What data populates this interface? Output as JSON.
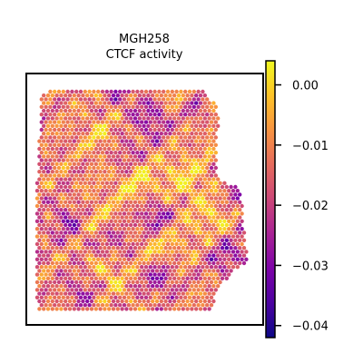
{
  "chart_data": {
    "type": "heatmap",
    "subtype": "spatial-spot-map",
    "title_lines": [
      "MGH258",
      "CTCF activity"
    ],
    "xlabel": "",
    "ylabel": "",
    "colormap": "plasma",
    "colorbar": {
      "vmin": -0.042,
      "vmax": 0.004,
      "ticks": [
        0.0,
        -0.01,
        -0.02,
        -0.03,
        -0.04
      ],
      "tick_labels": [
        "0.00",
        "−0.01",
        "−0.02",
        "−0.03",
        "−0.04"
      ]
    },
    "axes_ticks_visible": false,
    "grid": false,
    "value_range_observed": [
      -0.042,
      0.002
    ]
  }
}
